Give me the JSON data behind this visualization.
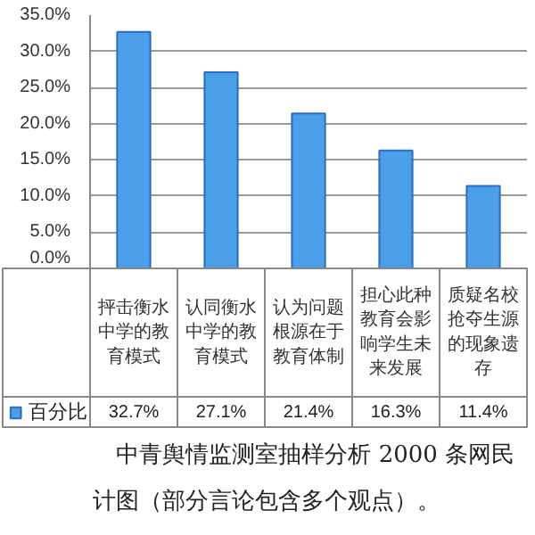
{
  "chart_data": {
    "type": "bar",
    "categories": [
      "抨击衡水中学的教育模式",
      "认同衡水中学的教育模式",
      "认为问题根源在于教育体制",
      "担心此种教育会影响学生未来发展",
      "质疑名校抢夺生源的现象遗存"
    ],
    "series": [
      {
        "name": "百分比",
        "color": "#4a9fe8",
        "values": [
          32.7,
          27.1,
          21.4,
          16.3,
          11.4
        ]
      }
    ],
    "value_labels": [
      "32.7%",
      "27.1%",
      "21.4%",
      "16.3%",
      "11.4%"
    ],
    "ylim": [
      0,
      35
    ],
    "yticks": [
      {
        "value": 0,
        "label": "0.0%"
      },
      {
        "value": 5,
        "label": "5.0%"
      },
      {
        "value": 10,
        "label": "10.0%"
      },
      {
        "value": 15,
        "label": "15.0%"
      },
      {
        "value": 20,
        "label": "20.0%"
      },
      {
        "value": 25,
        "label": "25.0%"
      },
      {
        "value": 30,
        "label": "30.0%"
      },
      {
        "value": 35,
        "label": "35.0%"
      }
    ],
    "grid": "y",
    "legend": "bottom left",
    "annotations": [
      "中青舆情监测室抽样分析 2000 条网民",
      "计图（部分言论包含多个观点）。"
    ]
  }
}
